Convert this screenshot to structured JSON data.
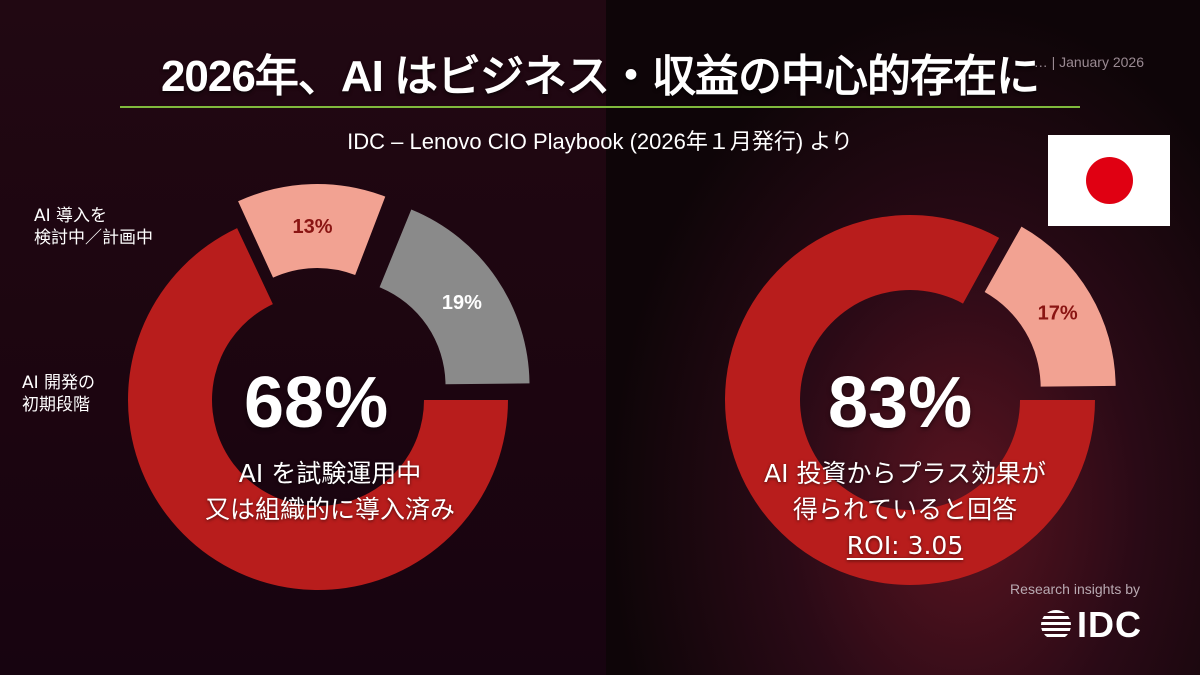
{
  "header": {
    "title": "2026年、AI はビジネス・収益の中心的存在に",
    "report_tag": "… | January 2026",
    "subtitle": "IDC – Lenovo CIO Playbook (2026年１月発行) より"
  },
  "flag": {
    "country": "Japan",
    "icon": "japan-flag-icon"
  },
  "colors": {
    "primary_red": "#b81d1c",
    "light_pink": "#f2a292",
    "gray": "#8a8a8a",
    "accent_green": "#7fb93c",
    "flag_red": "#e00012"
  },
  "chart_data": [
    {
      "type": "pie",
      "style": "donut-exploded",
      "slices": [
        {
          "label": "AI を試験運用中又は組織的に導入済み",
          "value": 68,
          "value_label": "68%",
          "color": "#b81d1c"
        },
        {
          "label": "AI 開発の初期段階",
          "value": 13,
          "value_label": "13%",
          "color": "#f2a292"
        },
        {
          "label": "AI 導入を検討中／計画中",
          "value": 19,
          "value_label": "19%",
          "color": "#8a8a8a"
        }
      ],
      "center_value": "68%",
      "caption_lines": [
        "AI を試験運用中",
        "又は組織的に導入済み"
      ],
      "side_labels": {
        "early_stage": [
          "AI 開発の",
          "初期段階"
        ],
        "planning": [
          "AI 導入を",
          "検討中／計画中"
        ]
      }
    },
    {
      "type": "pie",
      "style": "donut-exploded",
      "slices": [
        {
          "label": "AI 投資からプラス効果が得られていると回答",
          "value": 83,
          "value_label": "83%",
          "color": "#b81d1c"
        },
        {
          "label": "",
          "value": 17,
          "value_label": "17%",
          "color": "#f2a292"
        }
      ],
      "center_value": "83%",
      "caption_lines": [
        "AI 投資からプラス効果が",
        "得られていると回答"
      ],
      "roi": "ROI: 3.05"
    }
  ],
  "branding": {
    "research_line": "Research insights by",
    "logo_text": "IDC",
    "logo_icon": "idc-globe-icon"
  }
}
